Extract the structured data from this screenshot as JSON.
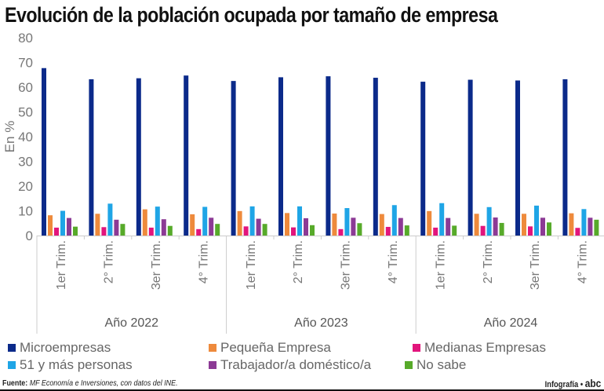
{
  "title": "Evolución de la población ocupada por tamaño de empresa",
  "chart_data": {
    "type": "bar",
    "ylabel": "En %",
    "ylim": [
      0,
      80
    ],
    "yticks": [
      0,
      10,
      20,
      30,
      40,
      50,
      60,
      70,
      80
    ],
    "grid": false,
    "legend_position": "bottom",
    "groups": [
      {
        "label": "Año 2022",
        "categories": [
          "1er Trim.",
          "2° Trim.",
          "3er Trim.",
          "4° Trim."
        ]
      },
      {
        "label": "Año 2023",
        "categories": [
          "1er Trim.",
          "2° Trim.",
          "3er Trim.",
          "4° Trim."
        ]
      },
      {
        "label": "Año 2024",
        "categories": [
          "1er Trim.",
          "2° Trim.",
          "3er Trim.",
          "4° Trim."
        ]
      }
    ],
    "series": [
      {
        "name": "Microempresas",
        "color": "#0b2a8a",
        "values": [
          67.7,
          63.2,
          63.6,
          64.7,
          62.5,
          64.0,
          64.4,
          63.8,
          62.2,
          63.0,
          62.7,
          63.2
        ]
      },
      {
        "name": "Pequeña Empresa",
        "color": "#ee8a3c",
        "values": [
          8.2,
          8.8,
          10.6,
          8.6,
          9.9,
          9.1,
          8.9,
          8.7,
          9.9,
          8.8,
          8.8,
          9.0
        ]
      },
      {
        "name": "Medianas Empresas",
        "color": "#e2157c",
        "values": [
          3.2,
          3.4,
          3.2,
          2.6,
          3.7,
          3.3,
          2.6,
          3.5,
          3.2,
          3.9,
          3.7,
          3.1
        ]
      },
      {
        "name": "51 y más personas",
        "color": "#1fa5e6",
        "values": [
          10.0,
          12.9,
          11.7,
          11.6,
          11.8,
          11.8,
          11.1,
          12.3,
          13.1,
          11.5,
          12.1,
          10.7
        ]
      },
      {
        "name": "Trabajador/a doméstico/a",
        "color": "#8c3a95",
        "values": [
          7.1,
          6.4,
          6.6,
          7.2,
          6.8,
          7.0,
          7.2,
          7.1,
          7.1,
          7.3,
          7.2,
          7.2
        ]
      },
      {
        "name": "No sabe",
        "color": "#57aa2a",
        "values": [
          3.6,
          4.7,
          3.9,
          4.7,
          4.7,
          4.2,
          5.0,
          4.1,
          4.0,
          5.1,
          5.3,
          6.4
        ]
      }
    ]
  },
  "footer": {
    "source_label": "Fuente:",
    "source_text": "MF Economía e Inversiones, con datos del INE.",
    "credit": "Infografía •",
    "logo": "abc"
  }
}
